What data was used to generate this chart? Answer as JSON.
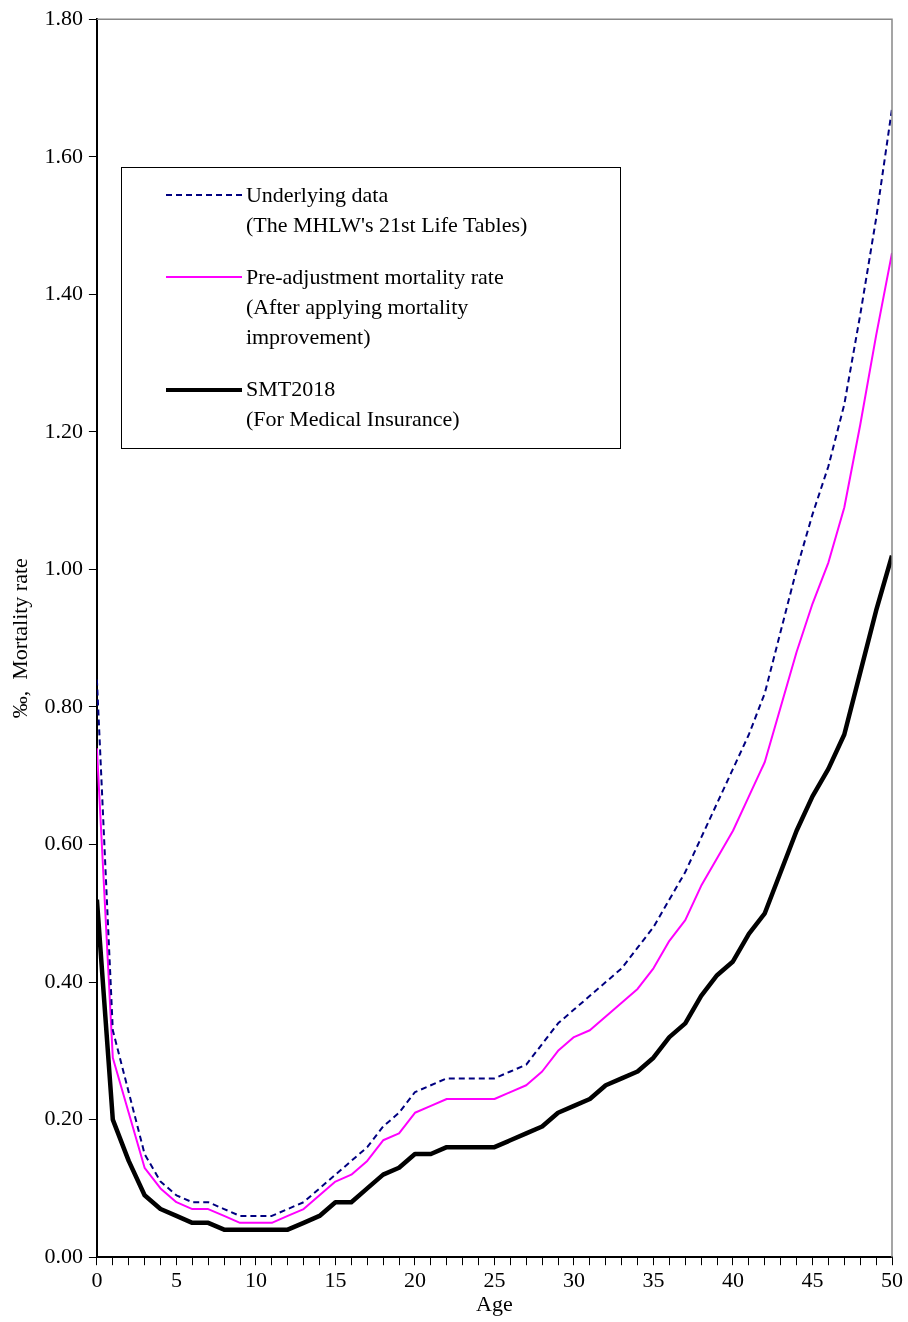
{
  "chart_data": {
    "type": "line",
    "xlabel": "Age",
    "ylabel": "‰,  Mortality rate",
    "x": [
      0,
      1,
      2,
      3,
      4,
      5,
      6,
      7,
      8,
      9,
      10,
      11,
      12,
      13,
      14,
      15,
      16,
      17,
      18,
      19,
      20,
      21,
      22,
      23,
      24,
      25,
      26,
      27,
      28,
      29,
      30,
      31,
      32,
      33,
      34,
      35,
      36,
      37,
      38,
      39,
      40,
      41,
      42,
      43,
      44,
      45,
      46,
      47,
      48,
      49,
      50
    ],
    "xlim": [
      0,
      50
    ],
    "xticks": [
      0,
      {
        "value": 1,
        "label": null
      },
      {
        "value": 2,
        "label": null
      },
      {
        "value": 3,
        "label": null
      },
      {
        "value": 4,
        "label": null
      },
      5,
      {
        "value": 6,
        "label": null
      },
      {
        "value": 7,
        "label": null
      },
      {
        "value": 8,
        "label": null
      },
      {
        "value": 9,
        "label": null
      },
      10,
      {
        "value": 11,
        "label": null
      },
      {
        "value": 12,
        "label": null
      },
      {
        "value": 13,
        "label": null
      },
      {
        "value": 14,
        "label": null
      },
      15,
      {
        "value": 16,
        "label": null
      },
      {
        "value": 17,
        "label": null
      },
      {
        "value": 18,
        "label": null
      },
      {
        "value": 19,
        "label": null
      },
      20,
      {
        "value": 21,
        "label": null
      },
      {
        "value": 22,
        "label": null
      },
      {
        "value": 23,
        "label": null
      },
      {
        "value": 24,
        "label": null
      },
      25,
      {
        "value": 26,
        "label": null
      },
      {
        "value": 27,
        "label": null
      },
      {
        "value": 28,
        "label": null
      },
      {
        "value": 29,
        "label": null
      },
      30,
      {
        "value": 31,
        "label": null
      },
      {
        "value": 32,
        "label": null
      },
      {
        "value": 33,
        "label": null
      },
      {
        "value": 34,
        "label": null
      },
      35,
      {
        "value": 36,
        "label": null
      },
      {
        "value": 37,
        "label": null
      },
      {
        "value": 38,
        "label": null
      },
      {
        "value": 39,
        "label": null
      },
      40,
      {
        "value": 41,
        "label": null
      },
      {
        "value": 42,
        "label": null
      },
      {
        "value": 43,
        "label": null
      },
      {
        "value": 44,
        "label": null
      },
      45,
      {
        "value": 46,
        "label": null
      },
      {
        "value": 47,
        "label": null
      },
      {
        "value": 48,
        "label": null
      },
      {
        "value": 49,
        "label": null
      },
      50
    ],
    "ylim": [
      0,
      1.8
    ],
    "yticks": [
      {
        "value": 0,
        "label": "0.00"
      },
      {
        "value": 0.2,
        "label": "0.20"
      },
      {
        "value": 0.4,
        "label": "0.40"
      },
      {
        "value": 0.6,
        "label": "0.60"
      },
      {
        "value": 0.8,
        "label": "0.80"
      },
      {
        "value": 1.0,
        "label": "1.00"
      },
      {
        "value": 1.2,
        "label": "1.20"
      },
      {
        "value": 1.4,
        "label": "1.40"
      },
      {
        "value": 1.6,
        "label": "1.60"
      },
      {
        "value": 1.8,
        "label": "1.80"
      }
    ],
    "grid": false,
    "legend": "top left",
    "marker": "none",
    "series": [
      {
        "name": "Underlying data\n(The MHLW's 21st Life Tables)",
        "color": "#000080",
        "line_style": "dashed",
        "values": [
          0.84,
          0.33,
          0.24,
          0.15,
          0.11,
          0.09,
          0.08,
          0.08,
          0.07,
          0.06,
          0.06,
          0.06,
          0.07,
          0.08,
          0.1,
          0.12,
          0.14,
          0.16,
          0.19,
          0.21,
          0.24,
          0.25,
          0.26,
          0.26,
          0.26,
          0.26,
          0.27,
          0.28,
          0.31,
          0.34,
          0.36,
          0.38,
          0.4,
          0.42,
          0.45,
          0.48,
          0.52,
          0.56,
          0.61,
          0.66,
          0.71,
          0.76,
          0.82,
          0.91,
          1.0,
          1.08,
          1.15,
          1.24,
          1.37,
          1.51,
          1.67
        ]
      },
      {
        "name": "Pre-adjustment mortality rate\n(After applying mortality\nimprovement)",
        "color": "#ff00ff",
        "line_style": "solid",
        "values": [
          0.74,
          0.29,
          0.21,
          0.13,
          0.1,
          0.08,
          0.07,
          0.07,
          0.06,
          0.05,
          0.05,
          0.05,
          0.06,
          0.07,
          0.09,
          0.11,
          0.12,
          0.14,
          0.17,
          0.18,
          0.21,
          0.22,
          0.23,
          0.23,
          0.23,
          0.23,
          0.24,
          0.25,
          0.27,
          0.3,
          0.32,
          0.33,
          0.35,
          0.37,
          0.39,
          0.42,
          0.46,
          0.49,
          0.54,
          0.58,
          0.62,
          0.67,
          0.72,
          0.8,
          0.88,
          0.95,
          1.01,
          1.09,
          1.21,
          1.34,
          1.46
        ]
      },
      {
        "name": "SMT2018\n(For Medical Insurance)",
        "color": "#000000",
        "line_style": "solid",
        "values": [
          0.52,
          0.2,
          0.14,
          0.09,
          0.07,
          0.06,
          0.05,
          0.05,
          0.04,
          0.04,
          0.04,
          0.04,
          0.04,
          0.05,
          0.06,
          0.08,
          0.08,
          0.1,
          0.12,
          0.13,
          0.15,
          0.15,
          0.16,
          0.16,
          0.16,
          0.16,
          0.17,
          0.18,
          0.19,
          0.21,
          0.22,
          0.23,
          0.25,
          0.26,
          0.27,
          0.29,
          0.32,
          0.34,
          0.38,
          0.41,
          0.43,
          0.47,
          0.5,
          0.56,
          0.62,
          0.67,
          0.71,
          0.76,
          0.85,
          0.94,
          1.02
        ]
      }
    ]
  }
}
